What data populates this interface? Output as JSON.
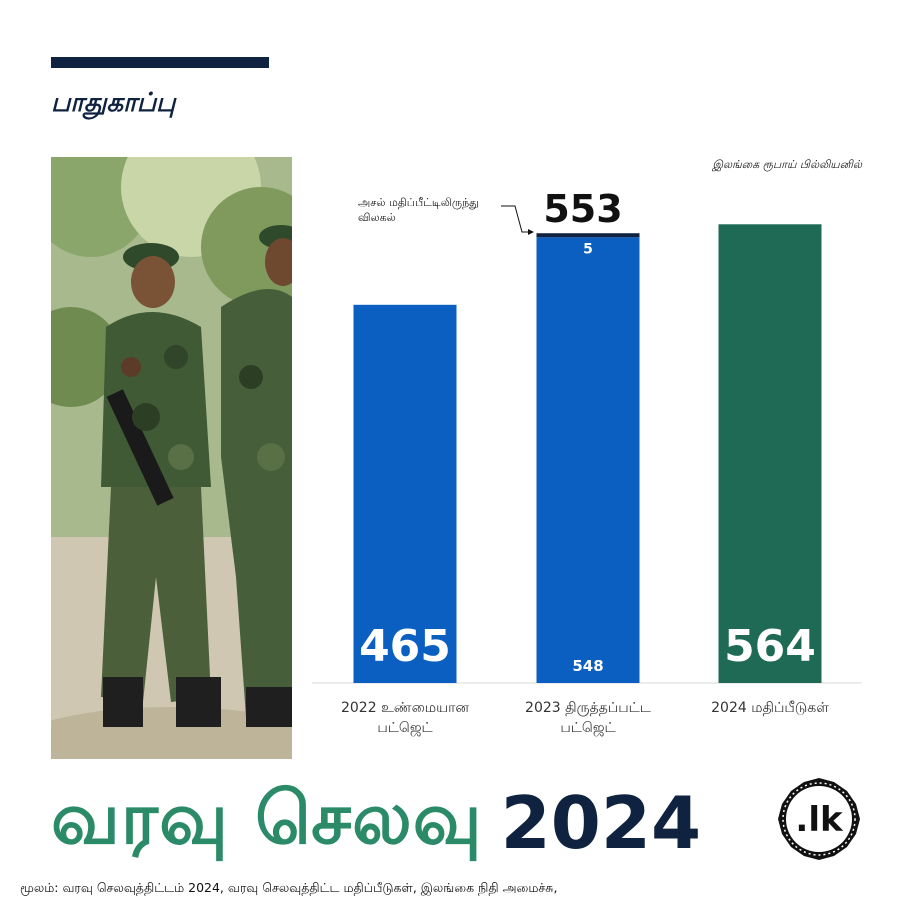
{
  "section_title": "பாதுகாப்பு",
  "unit_note": "இலங்கை ரூபாய் பில்லியனில்",
  "photo": {
    "alt": "soldiers-in-camouflage"
  },
  "chart_data": {
    "type": "bar",
    "categories": [
      [
        "2022 உண்மையான",
        "பட்ஜெட்"
      ],
      [
        "2023 திருத்தப்பட்ட",
        "பட்ஜெட்"
      ],
      [
        "2024 மதிப்பீடுகள்"
      ]
    ],
    "series": [
      {
        "values": [
          465,
          548,
          564
        ],
        "colors": [
          "#0a5fc0",
          "#0a5fc0",
          "#1f6a55"
        ]
      },
      {
        "values": [
          0,
          5,
          0
        ],
        "colors": [
          "#0f2240",
          "#0f2240",
          "#0f2240"
        ]
      }
    ],
    "data_labels": [
      "465",
      "548",
      "564"
    ],
    "deviation_label": "5",
    "total_label": "553",
    "annotation": [
      "அசல் மதிப்பீட்டிலிருந்து",
      "விலகல்"
    ],
    "ylim": [
      0,
      600
    ],
    "grid": false,
    "legend": "none"
  },
  "brand": {
    "title_ta": "வரவு செலவு",
    "year": "2024"
  },
  "logo": {
    "text": ".lk"
  },
  "source": "மூலம்: வரவு செலவுத்திட்டம் 2024, வரவு செலவுத்திட்ட மதிப்பீடுகள், இலங்கை நிதி அமைச்சு,"
}
